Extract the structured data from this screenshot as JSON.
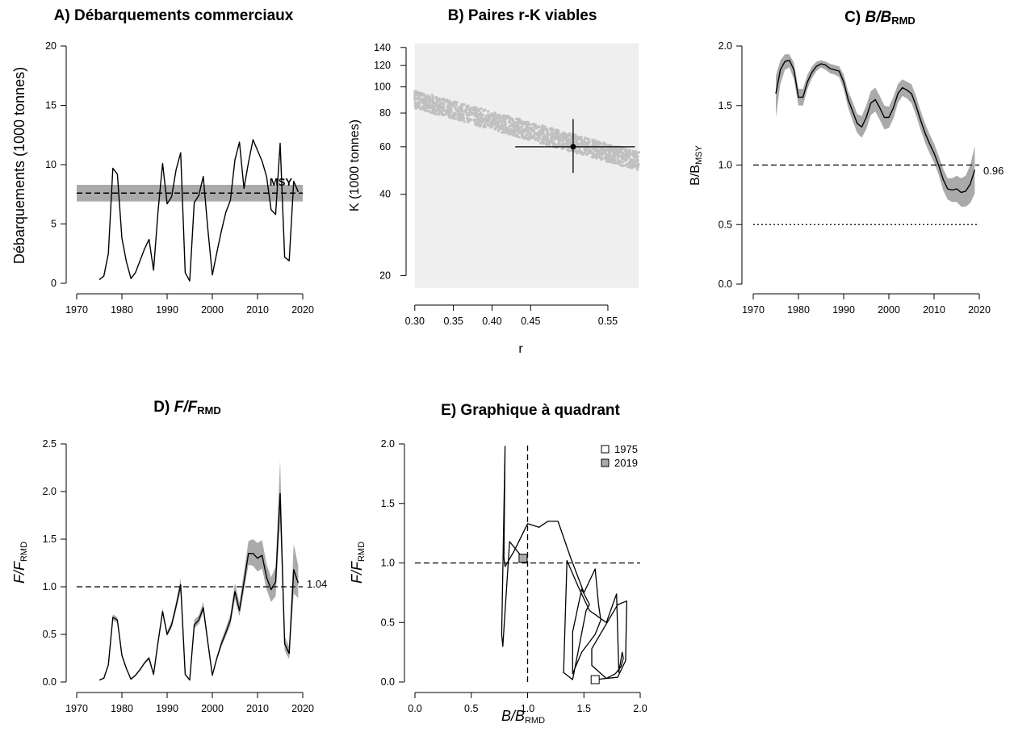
{
  "colors": {
    "band": "#aaaaaa",
    "cloud": "#c0c0c0",
    "panelbg": "#efefef",
    "line": "#000000",
    "marker2019": "#aaaaaa"
  },
  "chart_data": [
    {
      "panel": "A",
      "type": "line",
      "title": "A) Débarquements commerciaux",
      "xlabel": "",
      "ylabel": "Débarquements (1000 tonnes)",
      "xlim": [
        1970,
        2020
      ],
      "ylim": [
        0,
        20
      ],
      "xticks": [
        "1970",
        "1980",
        "1990",
        "2000",
        "2010",
        "2020"
      ],
      "yticks": [
        "0",
        "5",
        "10",
        "15",
        "20"
      ],
      "reference": {
        "label": "MSY",
        "value": 7.6,
        "band": [
          6.9,
          8.3
        ]
      },
      "x": [
        1975,
        1976,
        1977,
        1978,
        1979,
        1980,
        1981,
        1982,
        1983,
        1984,
        1985,
        1986,
        1987,
        1988,
        1989,
        1990,
        1991,
        1992,
        1993,
        1994,
        1995,
        1996,
        1997,
        1998,
        1999,
        2000,
        2001,
        2002,
        2003,
        2004,
        2005,
        2006,
        2007,
        2008,
        2009,
        2010,
        2011,
        2012,
        2013,
        2014,
        2015,
        2016,
        2017,
        2018,
        2019
      ],
      "y": [
        0.3,
        0.6,
        2.5,
        9.7,
        9.2,
        3.8,
        1.8,
        0.4,
        0.9,
        1.9,
        2.9,
        3.7,
        1.1,
        6.1,
        10.1,
        6.7,
        7.3,
        9.6,
        11.0,
        0.9,
        0.2,
        6.8,
        7.4,
        9.0,
        4.6,
        0.7,
        2.6,
        4.4,
        6.0,
        7.0,
        10.4,
        11.9,
        8.0,
        10.2,
        12.1,
        11.2,
        10.3,
        9.0,
        6.2,
        5.8,
        11.8,
        2.2,
        1.9,
        8.6,
        7.7
      ]
    },
    {
      "panel": "B",
      "type": "scatter",
      "title": "B) Paires r-K viables",
      "xlabel": "r",
      "ylabel": "K (1000 tonnes)",
      "xlim": [
        0.295,
        0.595
      ],
      "ylim": [
        17,
        155
      ],
      "ylog": true,
      "xticks": [
        "0.30",
        "0.35",
        "0.40",
        "0.45",
        "0.55"
      ],
      "yticks": [
        "20",
        "40",
        "60",
        "80",
        "100",
        "120",
        "140"
      ],
      "rect": {
        "r": [
          0.3,
          0.59
        ],
        "K": [
          18,
          145
        ]
      },
      "cloud_trend": {
        "r": [
          0.3,
          0.59
        ],
        "K_center": [
          90,
          53
        ],
        "K_spread": 0.055
      },
      "estimate": {
        "r": 0.505,
        "K": 60,
        "r_ci": [
          0.43,
          0.585
        ],
        "K_ci": [
          48,
          76
        ]
      }
    },
    {
      "panel": "C",
      "type": "line",
      "title": "C) B/BRMD",
      "title_base": "C) ",
      "title_b": "B/B",
      "title_sub": "RMD",
      "xlabel": "",
      "ylabel_base": "B/B",
      "ylabel_sub": "MSY",
      "xlim": [
        1970,
        2020
      ],
      "ylim": [
        0,
        2
      ],
      "xticks": [
        "1970",
        "1980",
        "1990",
        "2000",
        "2010",
        "2020"
      ],
      "yticks": [
        "0.0",
        "0.5",
        "1.0",
        "1.5",
        "2.0"
      ],
      "hlines": [
        1.0,
        0.5
      ],
      "end_label": "0.96",
      "x": [
        1975,
        1976,
        1977,
        1978,
        1979,
        1980,
        1981,
        1982,
        1983,
        1984,
        1985,
        1986,
        1987,
        1988,
        1989,
        1990,
        1991,
        1992,
        1993,
        1994,
        1995,
        1996,
        1997,
        1998,
        1999,
        2000,
        2001,
        2002,
        2003,
        2004,
        2005,
        2006,
        2007,
        2008,
        2009,
        2010,
        2011,
        2012,
        2013,
        2014,
        2015,
        2016,
        2017,
        2018,
        2019
      ],
      "y": [
        1.6,
        1.8,
        1.87,
        1.88,
        1.8,
        1.57,
        1.57,
        1.7,
        1.78,
        1.83,
        1.85,
        1.84,
        1.81,
        1.8,
        1.79,
        1.7,
        1.55,
        1.45,
        1.35,
        1.32,
        1.4,
        1.52,
        1.55,
        1.48,
        1.4,
        1.4,
        1.48,
        1.6,
        1.65,
        1.63,
        1.6,
        1.5,
        1.38,
        1.27,
        1.18,
        1.1,
        1.0,
        0.88,
        0.8,
        0.79,
        0.8,
        0.77,
        0.78,
        0.84,
        0.96
      ],
      "lower": [
        1.4,
        1.68,
        1.8,
        1.82,
        1.72,
        1.5,
        1.5,
        1.64,
        1.73,
        1.79,
        1.82,
        1.8,
        1.77,
        1.76,
        1.74,
        1.64,
        1.48,
        1.37,
        1.27,
        1.23,
        1.3,
        1.42,
        1.45,
        1.38,
        1.3,
        1.31,
        1.39,
        1.52,
        1.58,
        1.56,
        1.52,
        1.42,
        1.3,
        1.19,
        1.1,
        1.02,
        0.92,
        0.79,
        0.71,
        0.69,
        0.69,
        0.65,
        0.65,
        0.68,
        0.76
      ],
      "upper": [
        1.75,
        1.88,
        1.93,
        1.93,
        1.86,
        1.64,
        1.64,
        1.76,
        1.83,
        1.87,
        1.88,
        1.87,
        1.85,
        1.84,
        1.83,
        1.76,
        1.62,
        1.53,
        1.43,
        1.41,
        1.5,
        1.62,
        1.65,
        1.58,
        1.5,
        1.49,
        1.57,
        1.68,
        1.72,
        1.7,
        1.68,
        1.58,
        1.46,
        1.35,
        1.26,
        1.18,
        1.08,
        0.97,
        0.89,
        0.89,
        0.91,
        0.89,
        0.91,
        1.0,
        1.16
      ]
    },
    {
      "panel": "D",
      "type": "line",
      "title": "D) F/FRMD",
      "title_base": "D) ",
      "title_b": "F/F",
      "title_sub": "RMD",
      "xlabel": "",
      "ylabel_base": "F/F",
      "ylabel_sub": "RMD",
      "xlim": [
        1970,
        2020
      ],
      "ylim": [
        0,
        2.5
      ],
      "xticks": [
        "1970",
        "1980",
        "1990",
        "2000",
        "2010",
        "2020"
      ],
      "yticks": [
        "0.0",
        "0.5",
        "1.0",
        "1.5",
        "2.0",
        "2.5"
      ],
      "hlines": [
        1.0
      ],
      "end_label": "1.04",
      "x": [
        1975,
        1976,
        1977,
        1978,
        1979,
        1980,
        1981,
        1982,
        1983,
        1984,
        1985,
        1986,
        1987,
        1988,
        1989,
        1990,
        1991,
        1992,
        1993,
        1994,
        1995,
        1996,
        1997,
        1998,
        1999,
        2000,
        2001,
        2002,
        2003,
        2004,
        2005,
        2006,
        2007,
        2008,
        2009,
        2010,
        2011,
        2012,
        2013,
        2014,
        2015,
        2016,
        2017,
        2018,
        2019
      ],
      "y": [
        0.02,
        0.04,
        0.18,
        0.68,
        0.65,
        0.28,
        0.14,
        0.03,
        0.07,
        0.13,
        0.2,
        0.25,
        0.08,
        0.42,
        0.74,
        0.5,
        0.6,
        0.8,
        1.02,
        0.08,
        0.02,
        0.6,
        0.65,
        0.78,
        0.42,
        0.07,
        0.25,
        0.4,
        0.52,
        0.65,
        0.95,
        0.75,
        1.05,
        1.35,
        1.35,
        1.3,
        1.33,
        1.1,
        0.97,
        1.05,
        1.98,
        0.4,
        0.3,
        1.18,
        1.04
      ],
      "lower": [
        0.02,
        0.04,
        0.17,
        0.65,
        0.62,
        0.27,
        0.13,
        0.03,
        0.07,
        0.12,
        0.19,
        0.24,
        0.07,
        0.4,
        0.71,
        0.48,
        0.57,
        0.76,
        0.96,
        0.07,
        0.02,
        0.56,
        0.61,
        0.73,
        0.39,
        0.06,
        0.23,
        0.37,
        0.48,
        0.6,
        0.87,
        0.69,
        0.96,
        1.23,
        1.22,
        1.16,
        1.19,
        0.97,
        0.84,
        0.9,
        1.68,
        0.33,
        0.24,
        0.93,
        0.88
      ],
      "upper": [
        0.02,
        0.05,
        0.19,
        0.71,
        0.68,
        0.3,
        0.15,
        0.04,
        0.08,
        0.14,
        0.21,
        0.27,
        0.09,
        0.45,
        0.78,
        0.53,
        0.64,
        0.85,
        1.09,
        0.09,
        0.03,
        0.65,
        0.7,
        0.84,
        0.46,
        0.08,
        0.27,
        0.44,
        0.57,
        0.71,
        1.04,
        0.83,
        1.16,
        1.48,
        1.5,
        1.46,
        1.49,
        1.24,
        1.1,
        1.21,
        2.33,
        0.48,
        0.37,
        1.45,
        1.22
      ]
    },
    {
      "panel": "E",
      "type": "line",
      "title": "E) Graphique à quadrant",
      "xlabel_base": "B/B",
      "xlabel_sub": "RMD",
      "ylabel_base": "F/F",
      "ylabel_sub": "RMD",
      "xlim": [
        0,
        2
      ],
      "ylim": [
        0,
        2
      ],
      "xticks": [
        "0.0",
        "0.5",
        "1.0",
        "1.5",
        "2.0"
      ],
      "yticks": [
        "0.0",
        "0.5",
        "1.0",
        "1.5",
        "2.0"
      ],
      "vline": 1.0,
      "hline": 1.0,
      "legend": [
        {
          "label": "1975",
          "fill": "#ffffff"
        },
        {
          "label": "2019",
          "fill": "#aaaaaa"
        }
      ],
      "legend_position": "top-right",
      "x": [
        1.6,
        1.8,
        1.87,
        1.88,
        1.8,
        1.57,
        1.57,
        1.7,
        1.78,
        1.83,
        1.85,
        1.84,
        1.81,
        1.8,
        1.79,
        1.7,
        1.55,
        1.45,
        1.35,
        1.32,
        1.4,
        1.52,
        1.55,
        1.48,
        1.4,
        1.4,
        1.48,
        1.6,
        1.65,
        1.63,
        1.6,
        1.5,
        1.38,
        1.27,
        1.18,
        1.1,
        1.0,
        0.88,
        0.8,
        0.79,
        0.8,
        0.77,
        0.78,
        0.84,
        0.96
      ],
      "y": [
        0.02,
        0.04,
        0.18,
        0.68,
        0.65,
        0.28,
        0.14,
        0.03,
        0.07,
        0.13,
        0.2,
        0.25,
        0.08,
        0.42,
        0.74,
        0.5,
        0.6,
        0.8,
        1.02,
        0.08,
        0.02,
        0.6,
        0.65,
        0.78,
        0.42,
        0.07,
        0.25,
        0.4,
        0.52,
        0.65,
        0.95,
        0.75,
        1.05,
        1.35,
        1.35,
        1.3,
        1.33,
        1.1,
        0.97,
        1.05,
        1.98,
        0.4,
        0.3,
        1.18,
        1.04
      ]
    }
  ]
}
